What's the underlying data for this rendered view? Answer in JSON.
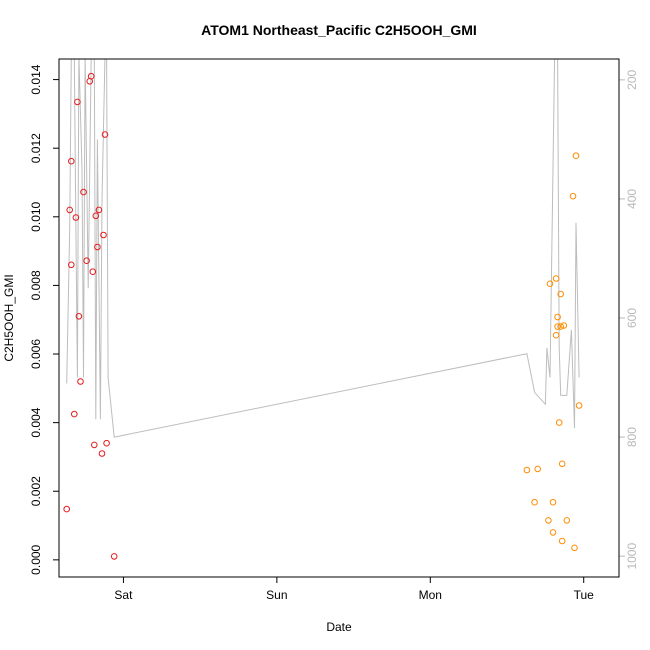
{
  "chart_data": {
    "type": "scatter",
    "title": "ATOM1 Northeast_Pacific C2H5OOH_GMI",
    "xlabel": "Date",
    "ylabel": "C2H5OOH_GMI",
    "xlim": [
      0.0,
      3.65
    ],
    "ylim": [
      -0.0005,
      0.0146
    ],
    "y2lim": [
      1035,
      165
    ],
    "x_ticks": [
      {
        "value": 0.42,
        "label": "Sat"
      },
      {
        "value": 1.42,
        "label": "Sun"
      },
      {
        "value": 2.42,
        "label": "Mon"
      },
      {
        "value": 3.42,
        "label": "Tue"
      }
    ],
    "y_ticks": [
      {
        "value": 0.0,
        "label": "0.000"
      },
      {
        "value": 0.002,
        "label": "0.002"
      },
      {
        "value": 0.004,
        "label": "0.004"
      },
      {
        "value": 0.006,
        "label": "0.006"
      },
      {
        "value": 0.008,
        "label": "0.008"
      },
      {
        "value": 0.01,
        "label": "0.010"
      },
      {
        "value": 0.012,
        "label": "0.012"
      },
      {
        "value": 0.014,
        "label": "0.014"
      }
    ],
    "y2_ticks": [
      {
        "value": 200,
        "label": "200"
      },
      {
        "value": 400,
        "label": "400"
      },
      {
        "value": 600,
        "label": "600"
      },
      {
        "value": 800,
        "label": "800"
      },
      {
        "value": 1000,
        "label": "1000"
      }
    ],
    "colors": {
      "series1": "#e41a1c",
      "series2": "#ff8c00",
      "pressure": "#bdbdbd",
      "right_axis": "#b8b8b8"
    },
    "series": [
      {
        "color": "#e41a1c",
        "points": [
          [
            0.05,
            0.00148
          ],
          [
            0.07,
            0.0102
          ],
          [
            0.08,
            0.0086
          ],
          [
            0.08,
            0.01162
          ],
          [
            0.1,
            0.00425
          ],
          [
            0.11,
            0.00998
          ],
          [
            0.12,
            0.01335
          ],
          [
            0.13,
            0.0071
          ],
          [
            0.14,
            0.0052
          ],
          [
            0.16,
            0.01072
          ],
          [
            0.18,
            0.00872
          ],
          [
            0.2,
            0.01395
          ],
          [
            0.21,
            0.0141
          ],
          [
            0.22,
            0.0084
          ],
          [
            0.23,
            0.00335
          ],
          [
            0.24,
            0.01003
          ],
          [
            0.25,
            0.00912
          ],
          [
            0.26,
            0.0102
          ],
          [
            0.28,
            0.0031
          ],
          [
            0.29,
            0.00947
          ],
          [
            0.3,
            0.0124
          ],
          [
            0.31,
            0.0034
          ],
          [
            0.36,
            0.0001
          ]
        ]
      },
      {
        "color": "#ff8c00",
        "points": [
          [
            3.05,
            0.00262
          ],
          [
            3.1,
            0.00168
          ],
          [
            3.12,
            0.00265
          ],
          [
            3.19,
            0.00115
          ],
          [
            3.2,
            0.00805
          ],
          [
            3.22,
            0.00168
          ],
          [
            3.22,
            0.0008
          ],
          [
            3.24,
            0.00655
          ],
          [
            3.24,
            0.0082
          ],
          [
            3.25,
            0.00708
          ],
          [
            3.25,
            0.0068
          ],
          [
            3.26,
            0.004
          ],
          [
            3.27,
            0.00775
          ],
          [
            3.27,
            0.0068
          ],
          [
            3.28,
            0.0028
          ],
          [
            3.28,
            0.00055
          ],
          [
            3.29,
            0.00683
          ],
          [
            3.31,
            0.00115
          ],
          [
            3.35,
            0.0106
          ],
          [
            3.36,
            0.00035
          ],
          [
            3.37,
            0.01178
          ],
          [
            3.39,
            0.0045
          ]
        ]
      }
    ],
    "pressure_line": {
      "color": "#bdbdbd",
      "axis": "right",
      "points": [
        [
          0.05,
          710
        ],
        [
          0.07,
          450
        ],
        [
          0.08,
          160
        ],
        [
          0.1,
          160
        ],
        [
          0.11,
          450
        ],
        [
          0.12,
          700
        ],
        [
          0.13,
          160
        ],
        [
          0.15,
          350
        ],
        [
          0.16,
          700
        ],
        [
          0.17,
          160
        ],
        [
          0.19,
          550
        ],
        [
          0.21,
          160
        ],
        [
          0.23,
          160
        ],
        [
          0.24,
          770
        ],
        [
          0.25,
          300
        ],
        [
          0.27,
          770
        ],
        [
          0.28,
          400
        ],
        [
          0.3,
          160
        ],
        [
          0.31,
          160
        ],
        [
          0.32,
          700
        ],
        [
          0.36,
          800
        ],
        [
          3.05,
          660
        ],
        [
          3.1,
          725
        ],
        [
          3.17,
          745
        ],
        [
          3.18,
          650
        ],
        [
          3.2,
          700
        ],
        [
          3.23,
          160
        ],
        [
          3.25,
          160
        ],
        [
          3.26,
          650
        ],
        [
          3.27,
          730
        ],
        [
          3.31,
          730
        ],
        [
          3.34,
          620
        ],
        [
          3.36,
          785
        ],
        [
          3.37,
          440
        ],
        [
          3.39,
          700
        ]
      ]
    }
  }
}
